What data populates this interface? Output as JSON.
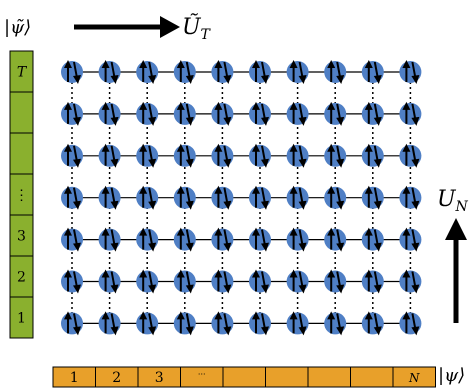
{
  "labels": {
    "psi_tilde": "|ψ̃⟩",
    "psi": "|ψ⟩",
    "u_t": "Ũ",
    "u_t_sub": "T",
    "u_n": "U",
    "u_n_sub": "N"
  },
  "left_column": {
    "fill_color": "#8ab02e",
    "stroke_color": "#000000",
    "cells": [
      "T",
      "",
      "",
      "⋮",
      "3",
      "2",
      "1"
    ]
  },
  "bottom_row": {
    "fill_color": "#e8a02a",
    "stroke_color": "#000000",
    "cells": [
      "1",
      "2",
      "3",
      "···",
      "",
      "",
      "",
      "",
      "N"
    ]
  },
  "lattice": {
    "rows": 7,
    "cols": 10,
    "node_color": "#4f7fc5",
    "bond_color": "#000000",
    "spin_color": "#000000"
  },
  "arrows": {
    "top": "right",
    "right": "up"
  }
}
